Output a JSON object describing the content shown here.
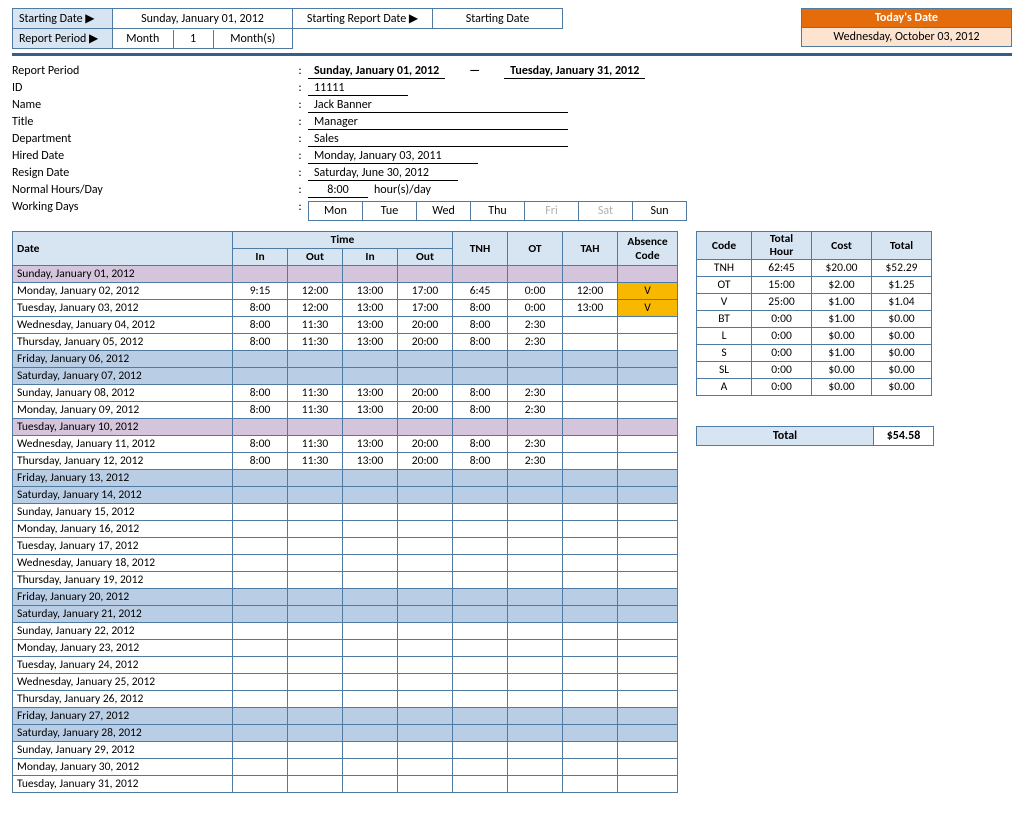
{
  "top": {
    "starting_date_label": "Starting Date ▶",
    "starting_date_value": "Sunday, January 01, 2012",
    "report_period_label": "Report Period ▶",
    "report_period_unit": "Month",
    "report_period_qty": "1",
    "report_period_suffix": "Month(s)",
    "srd_label": "Starting Report Date ▶",
    "srd_value": "Starting Date",
    "today_label": "Today's Date",
    "today_value": "Wednesday, October 03, 2012"
  },
  "emp": {
    "report_period_label": "Report Period",
    "period_from": "Sunday, January 01, 2012",
    "period_to": "Tuesday, January 31, 2012",
    "id_label": "ID",
    "id": "11111",
    "name_label": "Name",
    "name": "Jack Banner",
    "title_label": "Title",
    "title": "Manager",
    "dept_label": "Department",
    "dept": "Sales",
    "hired_label": "Hired Date",
    "hired": "Monday, January 03, 2011",
    "resign_label": "Resign Date",
    "resign": "Saturday, June 30, 2012",
    "normhrs_label": "Normal Hours/Day",
    "normhrs": "8:00",
    "normhrs_unit": "hour(s)/day",
    "workdays_label": "Working Days",
    "days": [
      "Mon",
      "Tue",
      "Wed",
      "Thu",
      "Fri",
      "Sat",
      "Sun"
    ],
    "days_off": [
      false,
      false,
      false,
      false,
      true,
      true,
      false
    ]
  },
  "timesheet": {
    "hdr_date": "Date",
    "hdr_time": "Time",
    "hdr_in": "In",
    "hdr_out": "Out",
    "hdr_tnh": "TNH",
    "hdr_ot": "OT",
    "hdr_tah": "TAH",
    "hdr_abs": "Absence Code",
    "rows": [
      {
        "date": "Sunday, January 01, 2012",
        "cls": "row-purple"
      },
      {
        "date": "Monday, January 02, 2012",
        "in1": "9:15",
        "out1": "12:00",
        "in2": "13:00",
        "out2": "17:00",
        "tnh": "6:45",
        "ot": "0:00",
        "tah": "12:00",
        "abs": "V",
        "abs_cls": "abs-v"
      },
      {
        "date": "Tuesday, January 03, 2012",
        "in1": "8:00",
        "out1": "12:00",
        "in2": "13:00",
        "out2": "17:00",
        "tnh": "8:00",
        "ot": "0:00",
        "tah": "13:00",
        "abs": "V",
        "abs_cls": "abs-v"
      },
      {
        "date": "Wednesday, January 04, 2012",
        "in1": "8:00",
        "out1": "11:30",
        "in2": "13:00",
        "out2": "20:00",
        "tnh": "8:00",
        "ot": "2:30"
      },
      {
        "date": "Thursday, January 05, 2012",
        "in1": "8:00",
        "out1": "11:30",
        "in2": "13:00",
        "out2": "20:00",
        "tnh": "8:00",
        "ot": "2:30"
      },
      {
        "date": "Friday, January 06, 2012",
        "cls": "row-weekend"
      },
      {
        "date": "Saturday, January 07, 2012",
        "cls": "row-weekend"
      },
      {
        "date": "Sunday, January 08, 2012",
        "in1": "8:00",
        "out1": "11:30",
        "in2": "13:00",
        "out2": "20:00",
        "tnh": "8:00",
        "ot": "2:30"
      },
      {
        "date": "Monday, January 09, 2012",
        "in1": "8:00",
        "out1": "11:30",
        "in2": "13:00",
        "out2": "20:00",
        "tnh": "8:00",
        "ot": "2:30"
      },
      {
        "date": "Tuesday, January 10, 2012",
        "cls": "row-purple"
      },
      {
        "date": "Wednesday, January 11, 2012",
        "in1": "8:00",
        "out1": "11:30",
        "in2": "13:00",
        "out2": "20:00",
        "tnh": "8:00",
        "ot": "2:30"
      },
      {
        "date": "Thursday, January 12, 2012",
        "in1": "8:00",
        "out1": "11:30",
        "in2": "13:00",
        "out2": "20:00",
        "tnh": "8:00",
        "ot": "2:30"
      },
      {
        "date": "Friday, January 13, 2012",
        "cls": "row-weekend"
      },
      {
        "date": "Saturday, January 14, 2012",
        "cls": "row-weekend"
      },
      {
        "date": "Sunday, January 15, 2012"
      },
      {
        "date": "Monday, January 16, 2012"
      },
      {
        "date": "Tuesday, January 17, 2012"
      },
      {
        "date": "Wednesday, January 18, 2012"
      },
      {
        "date": "Thursday, January 19, 2012"
      },
      {
        "date": "Friday, January 20, 2012",
        "cls": "row-weekend"
      },
      {
        "date": "Saturday, January 21, 2012",
        "cls": "row-weekend"
      },
      {
        "date": "Sunday, January 22, 2012"
      },
      {
        "date": "Monday, January 23, 2012"
      },
      {
        "date": "Tuesday, January 24, 2012"
      },
      {
        "date": "Wednesday, January 25, 2012"
      },
      {
        "date": "Thursday, January 26, 2012"
      },
      {
        "date": "Friday, January 27, 2012",
        "cls": "row-weekend"
      },
      {
        "date": "Saturday, January 28, 2012",
        "cls": "row-weekend"
      },
      {
        "date": "Sunday, January 29, 2012"
      },
      {
        "date": "Monday, January 30, 2012"
      },
      {
        "date": "Tuesday, January 31, 2012"
      }
    ]
  },
  "summary": {
    "hdr_code": "Code",
    "hdr_hour": "Total Hour",
    "hdr_cost": "Cost",
    "hdr_total": "Total",
    "rows": [
      {
        "code": "TNH",
        "hour": "62:45",
        "cost": "$20.00",
        "total": "$52.29"
      },
      {
        "code": "OT",
        "hour": "15:00",
        "cost": "$2.00",
        "total": "$1.25"
      },
      {
        "code": "V",
        "hour": "25:00",
        "cost": "$1.00",
        "total": "$1.04"
      },
      {
        "code": "BT",
        "hour": "0:00",
        "cost": "$1.00",
        "total": "$0.00"
      },
      {
        "code": "L",
        "hour": "0:00",
        "cost": "$0.00",
        "total": "$0.00"
      },
      {
        "code": "S",
        "hour": "0:00",
        "cost": "$1.00",
        "total": "$0.00"
      },
      {
        "code": "SL",
        "hour": "0:00",
        "cost": "$0.00",
        "total": "$0.00"
      },
      {
        "code": "A",
        "hour": "0:00",
        "cost": "$0.00",
        "total": "$0.00"
      }
    ],
    "grand_label": "Total",
    "grand_value": "$54.58"
  },
  "colors": {
    "header_blue": "#d7e4f2",
    "border_blue": "#4f7ba3",
    "divider": "#385d8a",
    "weekend_row": "#b9cde5",
    "purple_row": "#d5c5dc",
    "absence_hl": "#f9b800",
    "today_hdr": "#e46c0a",
    "today_bg": "#fde4d0"
  }
}
